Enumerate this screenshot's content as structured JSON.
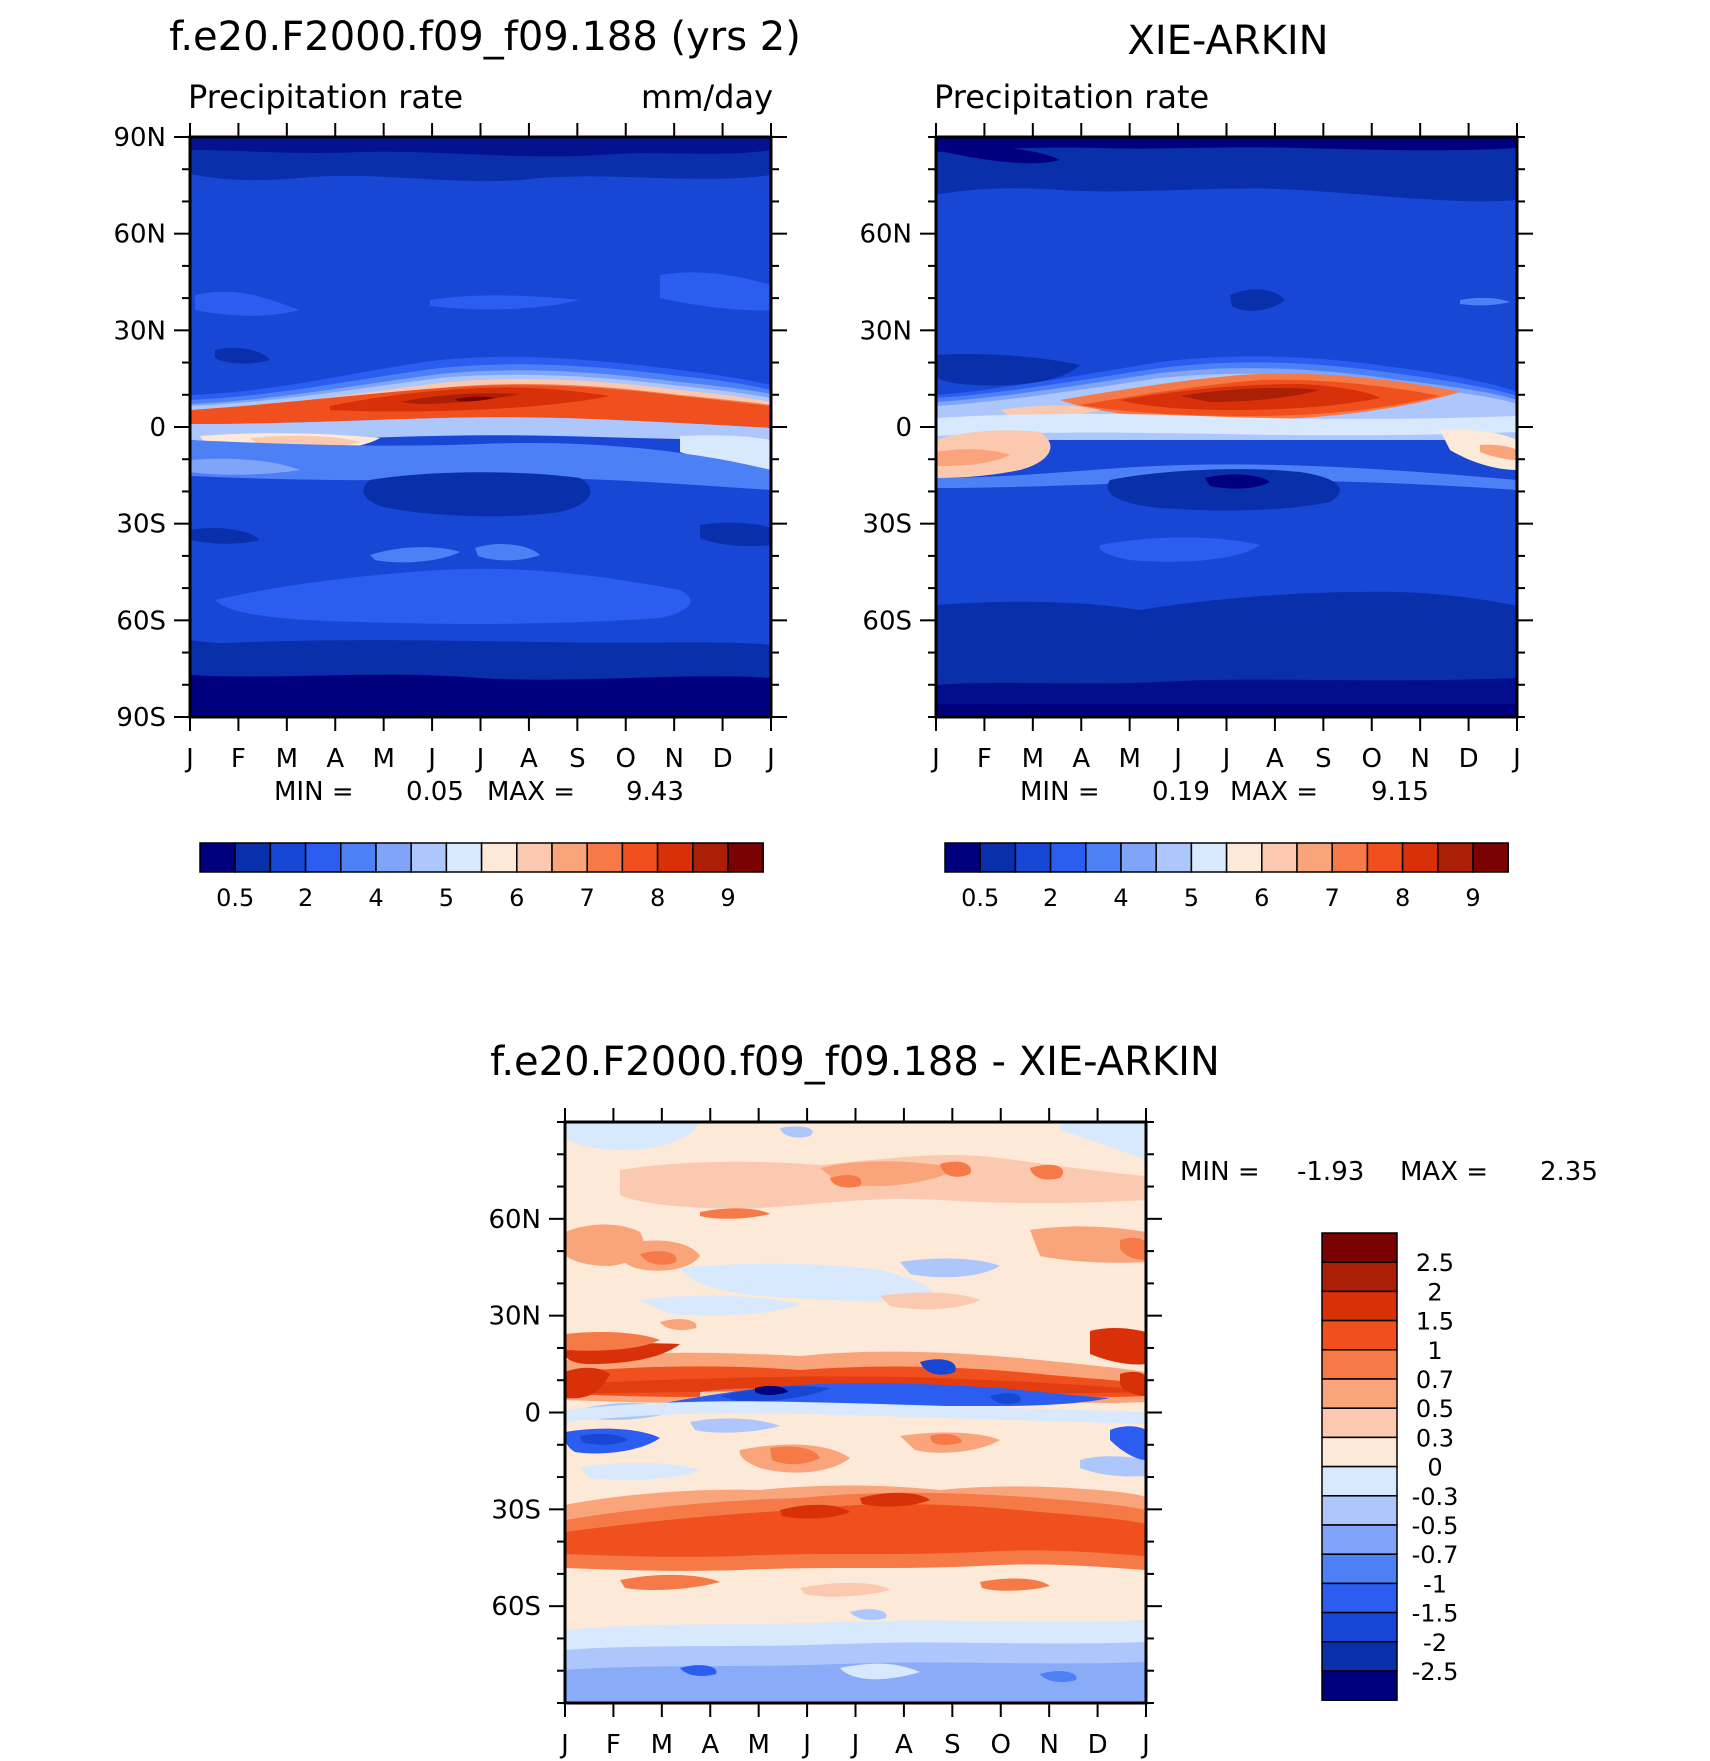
{
  "colors": {
    "precip_levels": [
      "#00007f",
      "#0a2faa",
      "#1847d6",
      "#2a5df0",
      "#4d7ff5",
      "#7fa4f8",
      "#adc6fb",
      "#d8e8fd",
      "#fde9d8",
      "#fbc9b0",
      "#f9a47a",
      "#f57a48",
      "#f0501d",
      "#d83008",
      "#aa1f05",
      "#7a0202"
    ],
    "diff_levels": [
      "#00007f",
      "#0a2faa",
      "#1847d6",
      "#2a5df0",
      "#4d7ff5",
      "#7fa4f8",
      "#adc6fb",
      "#d8e8fd",
      "#fde9d8",
      "#fbc9b0",
      "#f9a47a",
      "#f57a48",
      "#f0501d",
      "#d83008",
      "#aa1f05",
      "#7a0202"
    ]
  },
  "chart_data": [
    {
      "id": "model",
      "type": "heatmap",
      "title": "f.e20.F2000.f09_f09.188 (yrs 2)",
      "left_label": "Precipitation rate",
      "right_label": "mm/day",
      "x_ticks": [
        "J",
        "F",
        "M",
        "A",
        "M",
        "J",
        "J",
        "A",
        "S",
        "O",
        "N",
        "D",
        "J"
      ],
      "y_ticks": [
        "90N",
        "60N",
        "30N",
        "0",
        "30S",
        "60S",
        "90S"
      ],
      "y_range": [
        -90,
        90
      ],
      "stats": {
        "min_label": "MIN =",
        "min": "0.05",
        "max_label": "MAX =",
        "max": "9.43"
      },
      "levels": [
        0.5,
        1,
        2,
        3,
        4,
        4.5,
        5,
        5.5,
        6,
        6.5,
        7,
        7.5,
        8,
        8.5,
        9
      ],
      "colorbar_labels": [
        "0.5",
        "2",
        "4",
        "5",
        "6",
        "7",
        "8",
        "9"
      ],
      "itcz_peak_value": 9.43
    },
    {
      "id": "obs",
      "type": "heatmap",
      "title": "XIE-ARKIN",
      "left_label": "Precipitation rate",
      "x_ticks": [
        "J",
        "F",
        "M",
        "A",
        "M",
        "J",
        "J",
        "A",
        "S",
        "O",
        "N",
        "D",
        "J"
      ],
      "y_ticks": [
        "60N",
        "30N",
        "0",
        "30S",
        "60S"
      ],
      "y_range": [
        -90,
        90
      ],
      "stats": {
        "min_label": "MIN =",
        "min": "0.19",
        "max_label": "MAX =",
        "max": "9.15"
      },
      "levels": [
        0.5,
        1,
        2,
        3,
        4,
        4.5,
        5,
        5.5,
        6,
        6.5,
        7,
        7.5,
        8,
        8.5,
        9
      ],
      "colorbar_labels": [
        "0.5",
        "2",
        "4",
        "5",
        "6",
        "7",
        "8",
        "9"
      ],
      "itcz_peak_value": 9.15
    },
    {
      "id": "diff",
      "type": "heatmap",
      "title": "f.e20.F2000.f09_f09.188 - XIE-ARKIN",
      "x_ticks": [
        "J",
        "F",
        "M",
        "A",
        "M",
        "J",
        "J",
        "A",
        "S",
        "O",
        "N",
        "D",
        "J"
      ],
      "y_ticks": [
        "60N",
        "30N",
        "0",
        "30S",
        "60S"
      ],
      "y_range": [
        -90,
        90
      ],
      "stats": {
        "min_label": "MIN =",
        "min": "-1.93",
        "max_label": "MAX =",
        "max": "2.35"
      },
      "levels": [
        -2.5,
        -2,
        -1.5,
        -1,
        -0.7,
        -0.5,
        -0.3,
        0,
        0.3,
        0.5,
        0.7,
        1,
        1.5,
        2,
        2.5
      ],
      "colorbar_labels": [
        "2.5",
        "2",
        "1.5",
        "1",
        "0.7",
        "0.5",
        "0.3",
        "0",
        "-0.3",
        "-0.5",
        "-0.7",
        "-1",
        "-1.5",
        "-2",
        "-2.5"
      ]
    }
  ]
}
